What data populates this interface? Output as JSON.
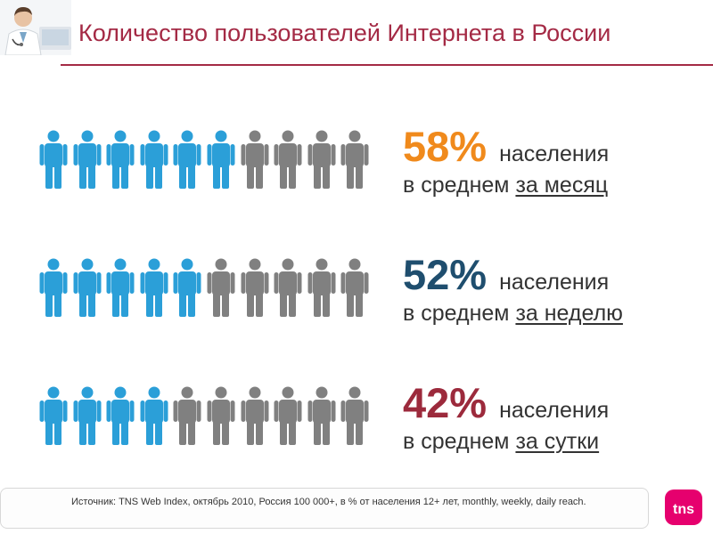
{
  "header": {
    "title": "Количество пользователей Интернета в России"
  },
  "colors": {
    "accent": "#a42a45",
    "person_active": "#2b9fd8",
    "person_inactive": "#808080"
  },
  "stats": [
    {
      "percent": "58%",
      "label": "населения",
      "prefix": "в среднем",
      "period": "за месяц",
      "percent_color": "#f08a1c",
      "total_people": 10,
      "active_people": 6
    },
    {
      "percent": "52%",
      "label": "населения",
      "prefix": "в среднем",
      "period": "за неделю",
      "percent_color": "#1f4e6e",
      "total_people": 10,
      "active_people": 5
    },
    {
      "percent": "42%",
      "label": "населения",
      "prefix": "в среднем",
      "period": "за сутки",
      "percent_color": "#9c2a3c",
      "total_people": 10,
      "active_people": 4
    }
  ],
  "footer": {
    "source": "Источник: TNS Web Index, октябрь 2010, Россия 100 000+, в % от населения 12+ лет, monthly, weekly, daily reach.",
    "logo_text": "tns"
  }
}
